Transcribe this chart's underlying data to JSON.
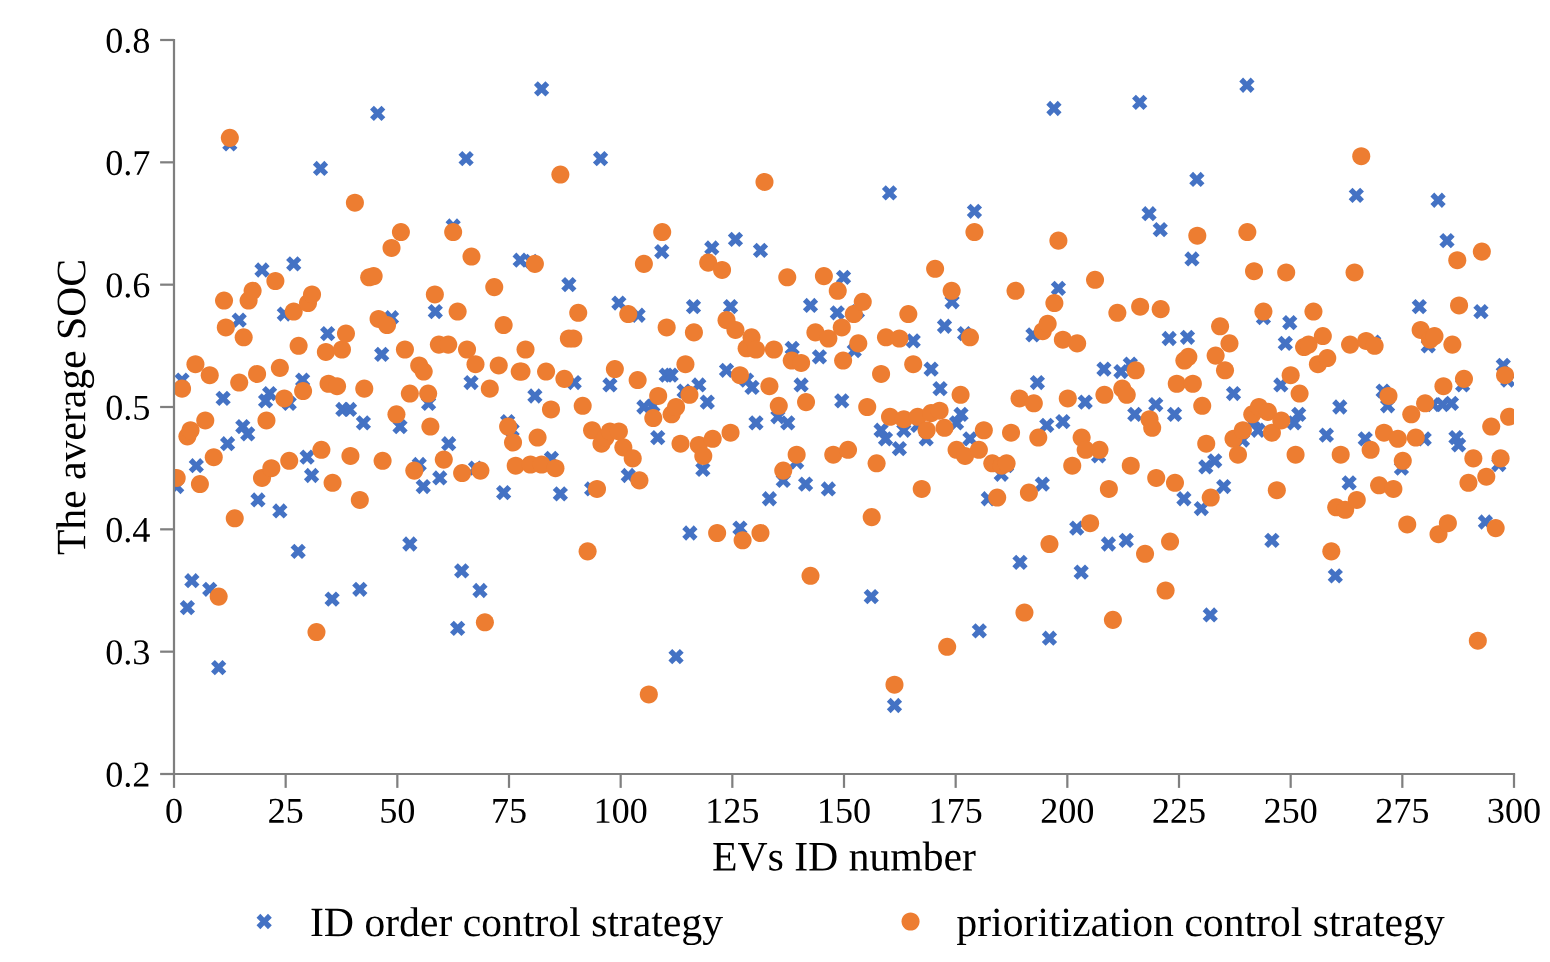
{
  "chart_data": {
    "type": "scatter",
    "xlabel": "EVs ID number",
    "ylabel": "The average SOC",
    "xlim": [
      0,
      300
    ],
    "xticks": [
      0,
      25,
      50,
      75,
      100,
      125,
      150,
      175,
      200,
      225,
      250,
      275,
      300
    ],
    "ylim": [
      0.2,
      0.8
    ],
    "yticks": [
      0.2,
      0.3,
      0.4,
      0.5,
      0.6,
      0.7,
      0.8
    ],
    "grid": false,
    "legend": "bottom",
    "series": [
      {
        "name": "ID order control strategy",
        "color": "#4472c4",
        "marker": "cross",
        "x": [
          1.8,
          0.6,
          3,
          4,
          5,
          8,
          10,
          11,
          12,
          12.5,
          14.6,
          15.4,
          16.5,
          18.8,
          19.7,
          21.4,
          20.5,
          23.7,
          24.7,
          25.8,
          26.8,
          27.8,
          28.8,
          29.8,
          30.8,
          32.8,
          34.4,
          35.4,
          37.8,
          39.3,
          41.6,
          42.4,
          45.6,
          46.5,
          48.7,
          50.6,
          52.8,
          54.9,
          55.8,
          57,
          58.5,
          59.5,
          61.5,
          62.5,
          63.5,
          64.4,
          65.4,
          66.5,
          67.5,
          68.5,
          73.8,
          74.7,
          75.7,
          77.5,
          80,
          80.8,
          82.3,
          84.5,
          86.5,
          88.4,
          89.6,
          93.5,
          95.5,
          97.6,
          99.6,
          101.7,
          103.9,
          105.2,
          107.2,
          108.3,
          109.2,
          110.2,
          111.3,
          112.4,
          114.2,
          116.3,
          117.5,
          118.4,
          119.4,
          120.4,
          115.5,
          123.7,
          124.6,
          125.7,
          126.7,
          128.2,
          129.4,
          130.3,
          131.3,
          133.3,
          135.2,
          136.4,
          137.4,
          138.4,
          139.4,
          140.4,
          141.4,
          142.5,
          144.5,
          146.5,
          148.5,
          149.5,
          149.9,
          152.3,
          153,
          156.1,
          158.3,
          159.3,
          160.2,
          161.3,
          162.4,
          163.4,
          165.5,
          166.5,
          168.4,
          169.5,
          171.5,
          172.5,
          174.2,
          175.2,
          176.2,
          177,
          178.2,
          179.2,
          180.3,
          182.3,
          185.2,
          186.4,
          189.4,
          192.3,
          193.3,
          194.4,
          195.4,
          196,
          197,
          198,
          199,
          202.1,
          203.1,
          204,
          207,
          208.2,
          209.2,
          212,
          213.2,
          214.1,
          215.1,
          216.2,
          218.3,
          219.8,
          220.8,
          222.8,
          224,
          226.1,
          226.9,
          227.9,
          229,
          230,
          231,
          232,
          233,
          235,
          237.2,
          239.2,
          240.2,
          241.7,
          242.7,
          243.9,
          245.8,
          247.8,
          248.8,
          249.8,
          250.8,
          251.8,
          258,
          260,
          261,
          263.1,
          264.7,
          266.7,
          268.6,
          270.7,
          271.7,
          274.8,
          278.8,
          279.9,
          280.8,
          281.9,
          283,
          284,
          285,
          286,
          287,
          287.6,
          288.5,
          292.6,
          293.6,
          296.6,
          297.6,
          298.6
        ],
        "values": [
          0.522,
          0.435,
          0.336,
          0.358,
          0.452,
          0.351,
          0.287,
          0.507,
          0.47,
          0.715,
          0.571,
          0.484,
          0.478,
          0.424,
          0.612,
          0.511,
          0.505,
          0.415,
          0.576,
          0.503,
          0.617,
          0.382,
          0.522,
          0.459,
          0.444,
          0.695,
          0.56,
          0.343,
          0.498,
          0.498,
          0.351,
          0.487,
          0.74,
          0.543,
          0.573,
          0.484,
          0.388,
          0.453,
          0.435,
          0.503,
          0.578,
          0.442,
          0.47,
          0.648,
          0.319,
          0.366,
          0.703,
          0.52,
          0.45,
          0.35,
          0.43,
          0.488,
          0.481,
          0.62,
          0.619,
          0.509,
          0.76,
          0.458,
          0.429,
          0.6,
          0.52,
          0.433,
          0.703,
          0.518,
          0.585,
          0.444,
          0.575,
          0.5,
          0.501,
          0.475,
          0.627,
          0.526,
          0.526,
          0.296,
          0.513,
          0.582,
          0.518,
          0.449,
          0.504,
          0.63,
          0.397,
          0.53,
          0.582,
          0.637,
          0.401,
          0.522,
          0.516,
          0.487,
          0.628,
          0.425,
          0.492,
          0.44,
          0.487,
          0.548,
          0.455,
          0.518,
          0.437,
          0.583,
          0.541,
          0.433,
          0.577,
          0.505,
          0.606,
          0.546,
          0.578,
          0.345,
          0.481,
          0.474,
          0.675,
          0.256,
          0.466,
          0.481,
          0.554,
          0.485,
          0.474,
          0.531,
          0.515,
          0.566,
          0.586,
          0.487,
          0.494,
          0.56,
          0.474,
          0.66,
          0.317,
          0.425,
          0.445,
          0.452,
          0.373,
          0.559,
          0.52,
          0.437,
          0.485,
          0.311,
          0.744,
          0.597,
          0.488,
          0.401,
          0.365,
          0.504,
          0.46,
          0.531,
          0.388,
          0.529,
          0.391,
          0.535,
          0.494,
          0.749,
          0.658,
          0.502,
          0.645,
          0.556,
          0.494,
          0.425,
          0.557,
          0.621,
          0.686,
          0.417,
          0.451,
          0.33,
          0.456,
          0.435,
          0.511,
          0.473,
          0.763,
          0.489,
          0.481,
          0.573,
          0.391,
          0.518,
          0.552,
          0.569,
          0.487,
          0.494,
          0.477,
          0.362,
          0.5,
          0.438,
          0.673,
          0.474,
          0.553,
          0.513,
          0.501,
          0.45,
          0.582,
          0.474,
          0.55,
          0.502,
          0.669,
          0.502,
          0.636,
          0.503,
          0.475,
          0.469,
          0.518,
          0.578,
          0.406,
          0.453,
          0.534,
          0.522
        ]
      },
      {
        "name": "prioritization control strategy",
        "color": "#ed7d31",
        "marker": "circle",
        "x": [
          0.6,
          1.8,
          3,
          3.7,
          4.8,
          5.8,
          7,
          8,
          8.9,
          10,
          11.2,
          11.6,
          12.5,
          13.6,
          14.6,
          15.6,
          16.7,
          17.6,
          18.6,
          19.7,
          20.7,
          21.8,
          22.7,
          23.7,
          24.7,
          25.8,
          26.8,
          27.9,
          28.9,
          30,
          30.9,
          31.9,
          33,
          34,
          34.6,
          35.5,
          36.5,
          37.6,
          38.5,
          39.5,
          40.5,
          41.6,
          42.6,
          43.7,
          44.7,
          45.8,
          46.7,
          47.7,
          48.7,
          49.8,
          50.8,
          51.7,
          52.8,
          53.8,
          54.9,
          55.9,
          56.9,
          57.4,
          58.4,
          59.3,
          60.4,
          61.4,
          62.5,
          63.5,
          64.5,
          65.6,
          66.6,
          67.5,
          68.6,
          69.6,
          70.7,
          71.7,
          72.7,
          73.8,
          74.8,
          75.9,
          76.5,
          77.4,
          78.7,
          77.8,
          79.8,
          80.8,
          81.4,
          82.3,
          83.3,
          84.4,
          85.4,
          86.5,
          87.4,
          88.4,
          89.4,
          90.5,
          91.5,
          92.6,
          93.6,
          94.7,
          95.7,
          96.6,
          97.6,
          98.7,
          99.6,
          100.6,
          101.7,
          102.7,
          103.8,
          104.2,
          105.2,
          106.3,
          107.3,
          108.4,
          109.3,
          110.3,
          111.4,
          112.4,
          113.4,
          114.5,
          115.4,
          116.4,
          117.5,
          118.5,
          119.6,
          120.6,
          121.6,
          122.7,
          123.7,
          124.6,
          125.7,
          126.7,
          127.3,
          128.2,
          129.3,
          130.3,
          131.3,
          132.2,
          133.3,
          134.3,
          135.4,
          136.4,
          137.3,
          138.3,
          139.4,
          140.4,
          141.5,
          142.5,
          143.6,
          145.5,
          146.5,
          147.6,
          148.6,
          149.5,
          149.8,
          150.9,
          152.2,
          153.2,
          154.2,
          155.2,
          156.2,
          157.3,
          158.3,
          159.4,
          160.3,
          161.3,
          162.4,
          163.4,
          164.4,
          165.5,
          166.5,
          167.4,
          168.5,
          169.5,
          170.4,
          171.4,
          172.5,
          173.1,
          174.1,
          175.2,
          176.1,
          177.1,
          178.2,
          179.2,
          180.2,
          181.3,
          183.2,
          184.3,
          185.3,
          186.4,
          187.4,
          188.4,
          189.3,
          190.4,
          191.4,
          192.5,
          193.5,
          194.5,
          195.6,
          196,
          197.1,
          198,
          199,
          200.1,
          201.1,
          202.2,
          203.2,
          204.1,
          205.1,
          206.2,
          207.2,
          208.3,
          209.3,
          210.2,
          211.2,
          212.3,
          213.3,
          214.2,
          215.3,
          216.3,
          217.4,
          218.4,
          219,
          219.9,
          220.9,
          222,
          223,
          224.1,
          224.5,
          226.2,
          227.1,
          228.1,
          229.1,
          230.2,
          231.1,
          232.1,
          233.2,
          234.2,
          235.3,
          236.3,
          237.2,
          238.2,
          239.3,
          240.3,
          241.4,
          241.8,
          242.9,
          243.9,
          244.9,
          245.8,
          246.9,
          247.9,
          249,
          250,
          251.1,
          252,
          253,
          254,
          255.1,
          256.1,
          257.2,
          258.2,
          259.1,
          260.2,
          261.2,
          262.2,
          263.3,
          264.3,
          264.8,
          265.8,
          266.9,
          267.9,
          268.8,
          269.8,
          270.9,
          271.9,
          273,
          274,
          275.1,
          276.1,
          277,
          278,
          279.1,
          280.1,
          281.2,
          282.2,
          283.1,
          284.2,
          285.2,
          286.2,
          287.3,
          287.7,
          288.8,
          289.8,
          290.9,
          291.9,
          292.8,
          293.8,
          294.9,
          295.9,
          297,
          298,
          298.9
        ],
        "values": [
          0.442,
          0.515,
          0.476,
          0.481,
          0.535,
          0.437,
          0.489,
          0.526,
          0.459,
          0.345,
          0.587,
          0.565,
          0.72,
          0.409,
          0.52,
          0.557,
          0.587,
          0.595,
          0.527,
          0.442,
          0.489,
          0.45,
          0.603,
          0.532,
          0.507,
          0.456,
          0.578,
          0.55,
          0.513,
          0.585,
          0.592,
          0.316,
          0.465,
          0.545,
          0.519,
          0.438,
          0.517,
          0.547,
          0.56,
          0.46,
          0.667,
          0.424,
          0.515,
          0.606,
          0.607,
          0.572,
          0.456,
          0.567,
          0.63,
          0.494,
          0.643,
          0.547,
          0.511,
          0.448,
          0.534,
          0.529,
          0.511,
          0.484,
          0.592,
          0.551,
          0.457,
          0.551,
          0.643,
          0.578,
          0.446,
          0.547,
          0.623,
          0.535,
          0.448,
          0.324,
          0.515,
          0.598,
          0.534,
          0.567,
          0.484,
          0.471,
          0.452,
          0.529,
          0.547,
          0.529,
          0.453,
          0.617,
          0.475,
          0.453,
          0.529,
          0.498,
          0.45,
          0.69,
          0.523,
          0.556,
          0.556,
          0.577,
          0.501,
          0.382,
          0.481,
          0.433,
          0.47,
          0.475,
          0.48,
          0.531,
          0.48,
          0.467,
          0.576,
          0.458,
          0.522,
          0.44,
          0.617,
          0.265,
          0.491,
          0.509,
          0.643,
          0.565,
          0.494,
          0.5,
          0.47,
          0.535,
          0.51,
          0.561,
          0.469,
          0.46,
          0.618,
          0.474,
          0.397,
          0.612,
          0.571,
          0.479,
          0.563,
          0.526,
          0.391,
          0.548,
          0.557,
          0.547,
          0.397,
          0.684,
          0.517,
          0.547,
          0.501,
          0.448,
          0.606,
          0.538,
          0.461,
          0.536,
          0.504,
          0.362,
          0.561,
          0.607,
          0.556,
          0.461,
          0.595,
          0.565,
          0.538,
          0.465,
          0.576,
          0.552,
          0.586,
          0.5,
          0.41,
          0.454,
          0.527,
          0.557,
          0.492,
          0.273,
          0.556,
          0.49,
          0.576,
          0.535,
          0.492,
          0.433,
          0.481,
          0.495,
          0.613,
          0.497,
          0.483,
          0.304,
          0.595,
          0.465,
          0.51,
          0.46,
          0.557,
          0.643,
          0.465,
          0.481,
          0.454,
          0.426,
          0.452,
          0.454,
          0.479,
          0.595,
          0.507,
          0.332,
          0.43,
          0.503,
          0.475,
          0.562,
          0.568,
          0.388,
          0.585,
          0.636,
          0.555,
          0.507,
          0.452,
          0.552,
          0.475,
          0.465,
          0.405,
          0.604,
          0.465,
          0.51,
          0.433,
          0.326,
          0.577,
          0.515,
          0.51,
          0.452,
          0.53,
          0.582,
          0.38,
          0.49,
          0.483,
          0.442,
          0.58,
          0.35,
          0.39,
          0.438,
          0.519,
          0.538,
          0.541,
          0.519,
          0.64,
          0.501,
          0.47,
          0.426,
          0.542,
          0.566,
          0.53,
          0.552,
          0.474,
          0.461,
          0.481,
          0.643,
          0.494,
          0.611,
          0.5,
          0.578,
          0.496,
          0.479,
          0.432,
          0.489,
          0.61,
          0.526,
          0.461,
          0.511,
          0.549,
          0.551,
          0.578,
          0.535,
          0.558,
          0.54,
          0.382,
          0.418,
          0.461,
          0.416,
          0.551,
          0.61,
          0.424,
          0.705,
          0.554,
          0.465,
          0.55,
          0.436,
          0.479,
          0.509,
          0.433,
          0.474,
          0.456,
          0.404,
          0.494,
          0.475,
          0.563,
          0.503,
          0.555,
          0.558,
          0.396,
          0.517,
          0.405,
          0.551,
          0.62,
          0.583,
          0.523,
          0.438,
          0.458,
          0.309,
          0.627,
          0.443,
          0.484,
          0.401,
          0.458,
          0.526,
          0.492
        ]
      }
    ]
  }
}
